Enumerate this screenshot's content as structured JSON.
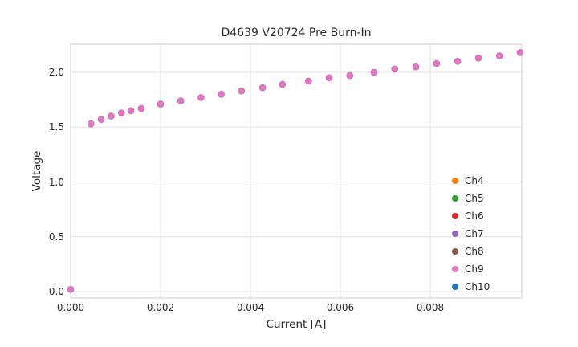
{
  "chart_data": {
    "type": "scatter",
    "title": "D4639 V20724 Pre Burn-In",
    "xlabel": "Current [A]",
    "ylabel": "Voltage",
    "xlim": [
      0,
      0.01004
    ],
    "ylim": [
      -0.06,
      2.26
    ],
    "grid": true,
    "legend_position": "lower right",
    "x_ticks": [
      "0.000",
      "0.002",
      "0.004",
      "0.006",
      "0.008"
    ],
    "x_tick_values": [
      0,
      0.002,
      0.004,
      0.006,
      0.008
    ],
    "y_ticks": [
      "0.0",
      "0.5",
      "1.0",
      "1.5",
      "2.0"
    ],
    "y_tick_values": [
      0,
      0.5,
      1.0,
      1.5,
      2.0
    ],
    "series": [
      {
        "name": "Ch4",
        "color": "#ff7f0e"
      },
      {
        "name": "Ch5",
        "color": "#2ca02c"
      },
      {
        "name": "Ch6",
        "color": "#d62728"
      },
      {
        "name": "Ch7",
        "color": "#9467bd"
      },
      {
        "name": "Ch8",
        "color": "#8c564b"
      },
      {
        "name": "Ch9",
        "color": "#e377c2"
      },
      {
        "name": "Ch10",
        "color": "#1f77b4"
      }
    ],
    "top_series": "Ch9",
    "note": "All seven channels plot coincident points; Ch9 (pink) is drawn on top so only pink markers are visible.",
    "shared": {
      "x": [
        0.0,
        0.00045,
        0.00068,
        0.0009,
        0.00113,
        0.00134,
        0.00157,
        0.002,
        0.00245,
        0.0029,
        0.00335,
        0.0038,
        0.00427,
        0.00471,
        0.00529,
        0.00575,
        0.00621,
        0.00675,
        0.00721,
        0.00768,
        0.00814,
        0.00861,
        0.00907,
        0.00954,
        0.01
      ],
      "y": [
        0.02,
        1.53,
        1.57,
        1.6,
        1.63,
        1.65,
        1.67,
        1.71,
        1.74,
        1.77,
        1.8,
        1.83,
        1.86,
        1.89,
        1.92,
        1.95,
        1.97,
        2.0,
        2.03,
        2.05,
        2.08,
        2.1,
        2.13,
        2.15,
        2.18
      ]
    },
    "colors": {
      "grid": "#e2e2e8",
      "spine": "#d4d4da",
      "marker_edge": "#c05fa5",
      "text": "#262626"
    }
  }
}
